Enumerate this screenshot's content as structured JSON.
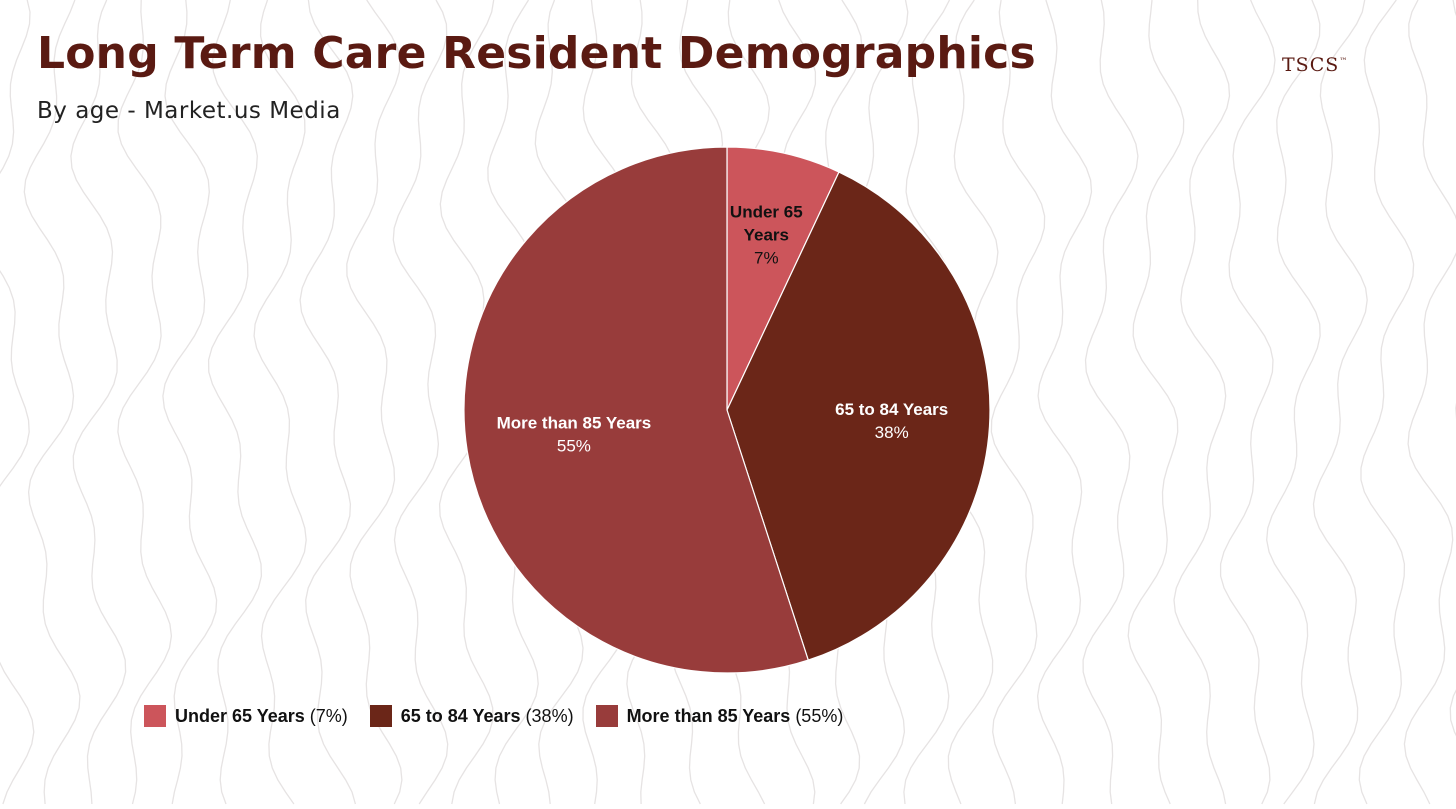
{
  "header": {
    "title": "Long Term Care Resident Demographics",
    "subtitle": "By age - Market.us Media",
    "brand": "TSCS",
    "brand_mark": "™"
  },
  "chart_data": {
    "type": "pie",
    "title": "Long Term Care Resident Demographics",
    "subtitle": "By age - Market.us Media",
    "slices": [
      {
        "label": "Under 65 Years",
        "label_lines": [
          "Under 65",
          "Years"
        ],
        "value": 7,
        "pct_text": "7%",
        "legend_pct": "(7%)",
        "color": "#cc555b",
        "label_color": "#111111"
      },
      {
        "label": "65 to 84 Years",
        "label_lines": [
          "65 to 84 Years"
        ],
        "value": 38,
        "pct_text": "38%",
        "legend_pct": "(38%)",
        "color": "#6b2618",
        "label_color": "#ffffff"
      },
      {
        "label": "More than 85 Years",
        "label_lines": [
          "More than 85 Years"
        ],
        "value": 55,
        "pct_text": "55%",
        "legend_pct": "(55%)",
        "color": "#983c3b",
        "label_color": "#ffffff"
      }
    ],
    "legend_position": "bottom"
  }
}
